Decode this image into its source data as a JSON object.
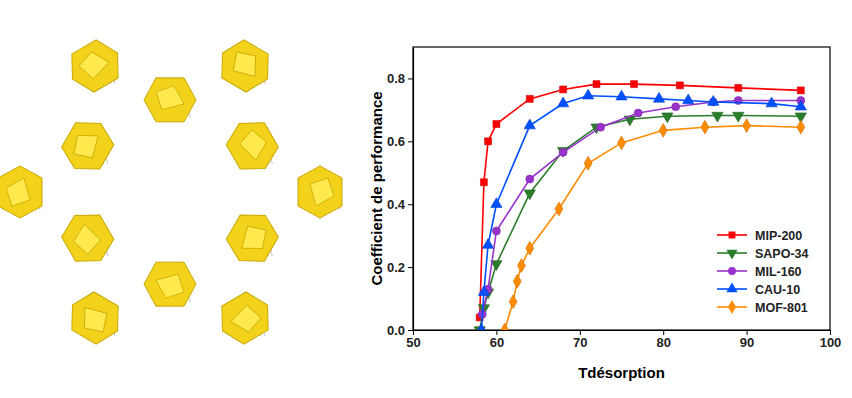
{
  "chart_data": {
    "type": "line",
    "x_label": "Tdésorption",
    "y_label": "Coefficient de performance",
    "xlim": [
      50,
      100
    ],
    "xticks": [
      50,
      60,
      70,
      80,
      90,
      100
    ],
    "ylim": [
      0,
      0.9
    ],
    "yticks": [
      {
        "value": 0,
        "label": "0.0"
      },
      {
        "value": 0.2,
        "label": "0.2"
      },
      {
        "value": 0.4,
        "label": "0.4"
      },
      {
        "value": 0.6,
        "label": "0.6"
      },
      {
        "value": 0.8,
        "label": "0.8"
      }
    ],
    "legend": "bottom-right",
    "grid": false,
    "series": [
      {
        "name": "MIP-200",
        "color": "#ff0000",
        "marker": "square",
        "line_style": "solid",
        "x": [
          58,
          58.5,
          59,
          60,
          64,
          68,
          72,
          76.5,
          82,
          89,
          96.5
        ],
        "values": [
          0.04,
          0.47,
          0.6,
          0.655,
          0.735,
          0.765,
          0.782,
          0.782,
          0.778,
          0.77,
          0.762
        ]
      },
      {
        "name": "SAPO-34",
        "color": "#2a7d2a",
        "marker": "triangle-down",
        "line_style": "solid",
        "x": [
          58,
          58.5,
          59,
          60,
          64,
          68,
          72,
          76,
          80.5,
          86.5,
          89,
          96.5
        ],
        "values": [
          0.0,
          0.07,
          0.12,
          0.21,
          0.435,
          0.57,
          0.645,
          0.67,
          0.68,
          0.682,
          0.682,
          0.68
        ]
      },
      {
        "name": "MIL-160",
        "color": "#9933cc",
        "marker": "circle",
        "line_style": "solid",
        "x": [
          58.3,
          59,
          60,
          64,
          68,
          72.5,
          77,
          81.5,
          86,
          89,
          96.5
        ],
        "values": [
          0.05,
          0.13,
          0.315,
          0.48,
          0.565,
          0.645,
          0.69,
          0.71,
          0.725,
          0.73,
          0.73
        ]
      },
      {
        "name": "CAU-10",
        "color": "#0050ff",
        "marker": "triangle-up",
        "line_style": "solid",
        "x": [
          58.2,
          58.5,
          59,
          60,
          64,
          68,
          71,
          75,
          79.5,
          83,
          86,
          93,
          96.5
        ],
        "values": [
          0.0,
          0.12,
          0.27,
          0.4,
          0.65,
          0.72,
          0.745,
          0.742,
          0.735,
          0.73,
          0.725,
          0.72,
          0.71
        ]
      },
      {
        "name": "MOF-801",
        "color": "#ff8c00",
        "marker": "diamond",
        "line_style": "solid",
        "x": [
          61,
          62,
          62.5,
          63,
          64,
          67.5,
          71,
          75,
          80,
          85,
          90,
          96.5
        ],
        "values": [
          0.0,
          0.09,
          0.155,
          0.205,
          0.26,
          0.385,
          0.53,
          0.595,
          0.635,
          0.645,
          0.65,
          0.645
        ]
      }
    ]
  }
}
